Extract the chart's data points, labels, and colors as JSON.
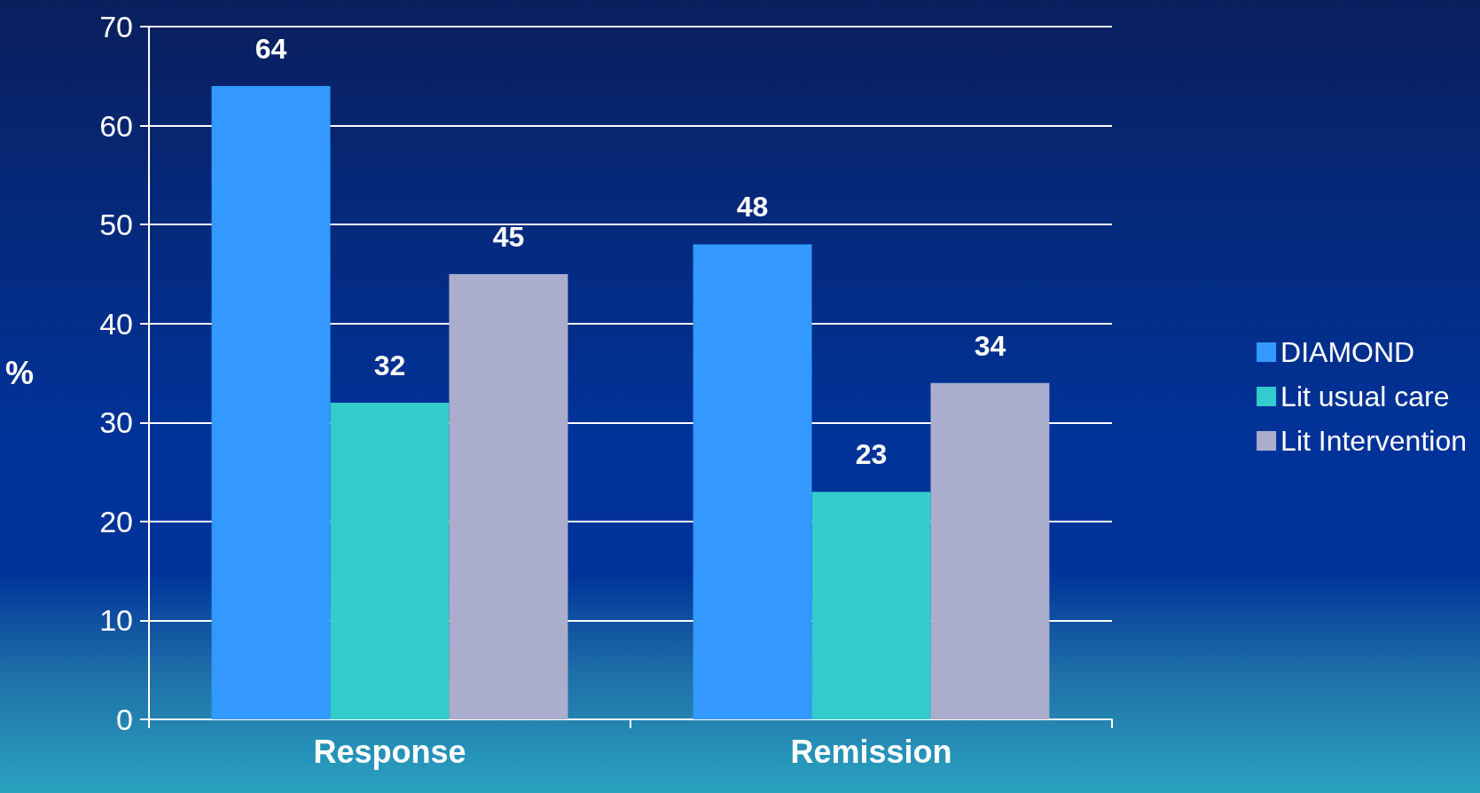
{
  "chart_data": {
    "type": "bar",
    "ylabel": "%",
    "categories": [
      "Response",
      "Remission"
    ],
    "series": [
      {
        "name": "DIAMOND",
        "color": "#3399ff",
        "values": [
          64,
          48
        ]
      },
      {
        "name": "Lit usual care",
        "color": "#33cccc",
        "values": [
          32,
          23
        ]
      },
      {
        "name": "Lit Intervention",
        "color": "#aaaecc",
        "values": [
          45,
          34
        ]
      }
    ],
    "ylim": [
      0,
      70
    ],
    "yticks": [
      0,
      10,
      20,
      30,
      40,
      50,
      60,
      70
    ],
    "grid": "y",
    "legend": "right",
    "data_labels": true
  }
}
